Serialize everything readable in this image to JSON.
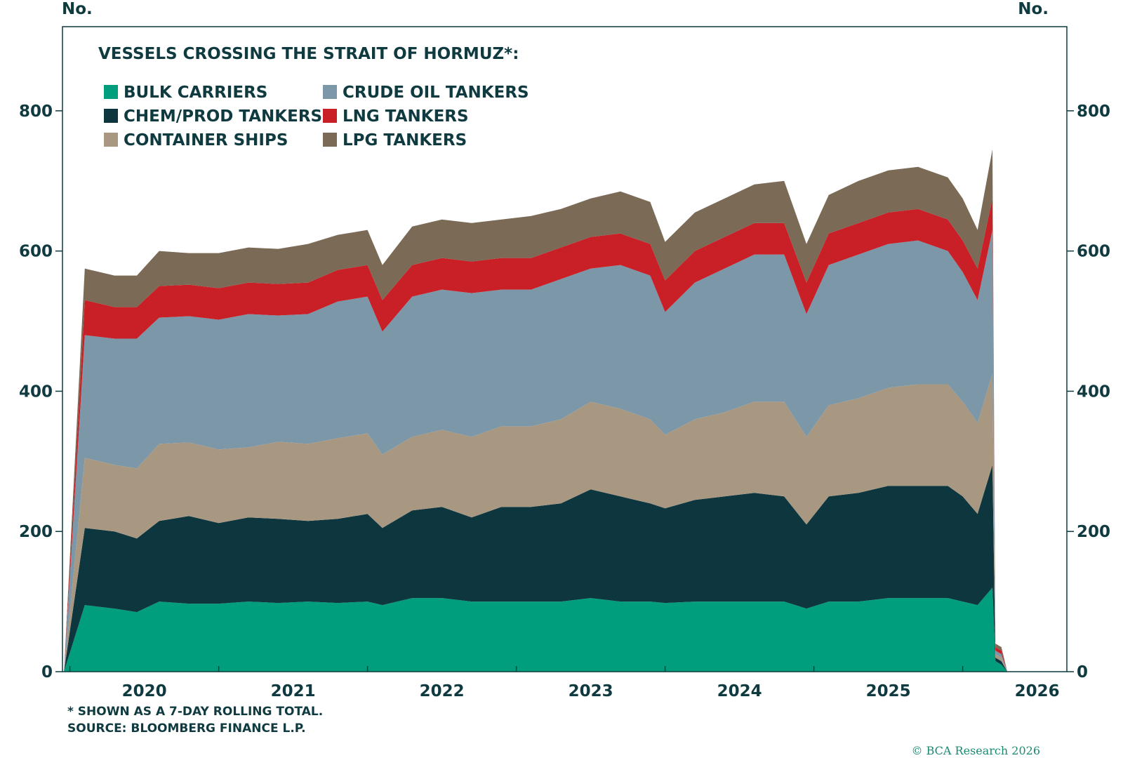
{
  "chart_data": {
    "type": "area",
    "stacked": true,
    "title": "VESSELS CROSSING THE STRAIT OF HORMUZ*:",
    "ylabel_left": "No.",
    "ylabel_right": "No.",
    "ylim": [
      0,
      920
    ],
    "yticks": [
      0,
      200,
      400,
      600,
      800
    ],
    "xlim": [
      2019.45,
      2026.2
    ],
    "xticks": [
      2020,
      2021,
      2022,
      2023,
      2024,
      2025,
      2026
    ],
    "xtick_labels": [
      "2020",
      "2021",
      "2022",
      "2023",
      "2024",
      "2025",
      "2026"
    ],
    "x": [
      2019.46,
      2019.6,
      2019.8,
      2019.95,
      2020.1,
      2020.3,
      2020.5,
      2020.7,
      2020.9,
      2021.1,
      2021.3,
      2021.5,
      2021.6,
      2021.8,
      2022.0,
      2022.2,
      2022.4,
      2022.6,
      2022.8,
      2023.0,
      2023.2,
      2023.4,
      2023.5,
      2023.7,
      2023.9,
      2024.1,
      2024.3,
      2024.45,
      2024.6,
      2024.8,
      2025.0,
      2025.2,
      2025.4,
      2025.5,
      2025.6,
      2025.7,
      2025.72,
      2025.76,
      2025.8
    ],
    "series": [
      {
        "name": "BULK CARRIERS",
        "color": "#009e7c",
        "values": [
          0,
          95,
          90,
          85,
          100,
          97,
          97,
          100,
          98,
          100,
          98,
          100,
          95,
          105,
          105,
          100,
          100,
          100,
          100,
          105,
          100,
          100,
          98,
          100,
          100,
          100,
          100,
          90,
          100,
          100,
          105,
          105,
          105,
          100,
          95,
          120,
          15,
          10,
          0
        ]
      },
      {
        "name": "CHEM/PROD TANKERS",
        "color": "#0d363f",
        "values": [
          0,
          110,
          110,
          105,
          115,
          125,
          115,
          120,
          120,
          115,
          120,
          125,
          110,
          125,
          130,
          120,
          135,
          135,
          140,
          155,
          150,
          140,
          135,
          145,
          150,
          155,
          150,
          120,
          150,
          155,
          160,
          160,
          160,
          150,
          130,
          175,
          5,
          5,
          0
        ]
      },
      {
        "name": "CONTAINER SHIPS",
        "color": "#a89882",
        "values": [
          0,
          100,
          95,
          100,
          110,
          105,
          105,
          100,
          110,
          110,
          115,
          115,
          105,
          105,
          110,
          115,
          115,
          115,
          120,
          125,
          125,
          120,
          105,
          115,
          120,
          130,
          135,
          125,
          130,
          135,
          140,
          145,
          145,
          135,
          130,
          130,
          5,
          5,
          0
        ]
      },
      {
        "name": "CRUDE OIL TANKERS",
        "color": "#7b97a8",
        "values": [
          0,
          175,
          180,
          185,
          180,
          180,
          185,
          190,
          180,
          185,
          195,
          195,
          175,
          200,
          200,
          205,
          195,
          195,
          200,
          190,
          205,
          205,
          175,
          195,
          205,
          210,
          210,
          175,
          200,
          205,
          205,
          205,
          190,
          185,
          175,
          205,
          5,
          5,
          0
        ]
      },
      {
        "name": "LNG TANKERS",
        "color": "#c91f27",
        "values": [
          0,
          50,
          45,
          45,
          45,
          45,
          45,
          45,
          45,
          45,
          45,
          45,
          45,
          45,
          45,
          45,
          45,
          45,
          45,
          45,
          45,
          45,
          45,
          45,
          45,
          45,
          45,
          45,
          45,
          45,
          45,
          45,
          45,
          45,
          45,
          45,
          5,
          5,
          0
        ]
      },
      {
        "name": "LPG TANKERS",
        "color": "#7a6a56",
        "values": [
          0,
          45,
          45,
          45,
          50,
          45,
          50,
          50,
          50,
          55,
          50,
          50,
          50,
          55,
          55,
          55,
          55,
          60,
          55,
          55,
          60,
          60,
          55,
          55,
          55,
          55,
          60,
          55,
          55,
          60,
          60,
          60,
          60,
          60,
          55,
          70,
          5,
          5,
          0
        ]
      }
    ]
  },
  "header": {
    "unit_left": "No.",
    "unit_right": "No.",
    "title": "VESSELS CROSSING THE STRAIT OF HORMUZ*:"
  },
  "legend": [
    {
      "label": "BULK CARRIERS",
      "color": "#009e7c"
    },
    {
      "label": "CRUDE OIL TANKERS",
      "color": "#7b97a8"
    },
    {
      "label": "CHEM/PROD TANKERS",
      "color": "#0d363f"
    },
    {
      "label": "LNG TANKERS",
      "color": "#c91f27"
    },
    {
      "label": "CONTAINER SHIPS",
      "color": "#a89882"
    },
    {
      "label": "LPG TANKERS",
      "color": "#7a6a56"
    }
  ],
  "footer": {
    "note": "* SHOWN AS A 7-DAY ROLLING TOTAL.",
    "source": "SOURCE: BLOOMBERG FINANCE L.P.",
    "copyright": "© BCA Research 2026"
  }
}
